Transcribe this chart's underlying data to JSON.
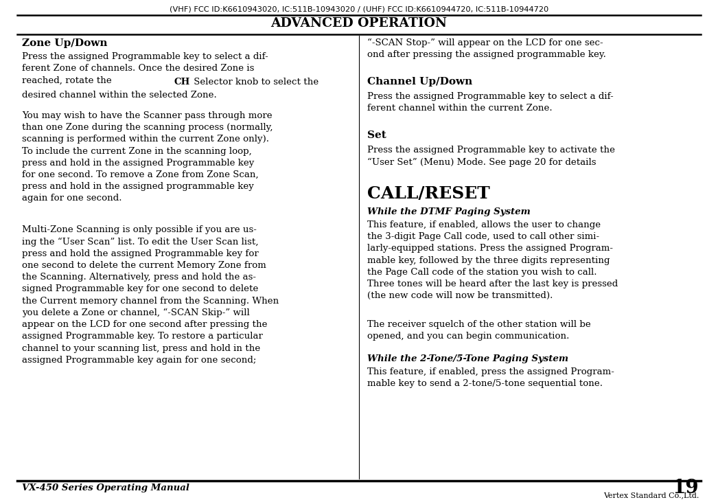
{
  "bg_color": "#ffffff",
  "text_color": "#000000",
  "line_color": "#000000",
  "top_fcc_text": "(VHF) FCC ID:K6610943020, IC:511B-10943020 / (UHF) FCC ID:K6610944720, IC:511B-10944720",
  "header_title": "ADVANCED OPERATION",
  "footer_manual": "VX-450 Series Operating Manual",
  "footer_page": "19",
  "footer_company": "Vertex Standard Co.,Ltd.",
  "figw": 10.46,
  "figh": 7.28,
  "dpi": 100
}
